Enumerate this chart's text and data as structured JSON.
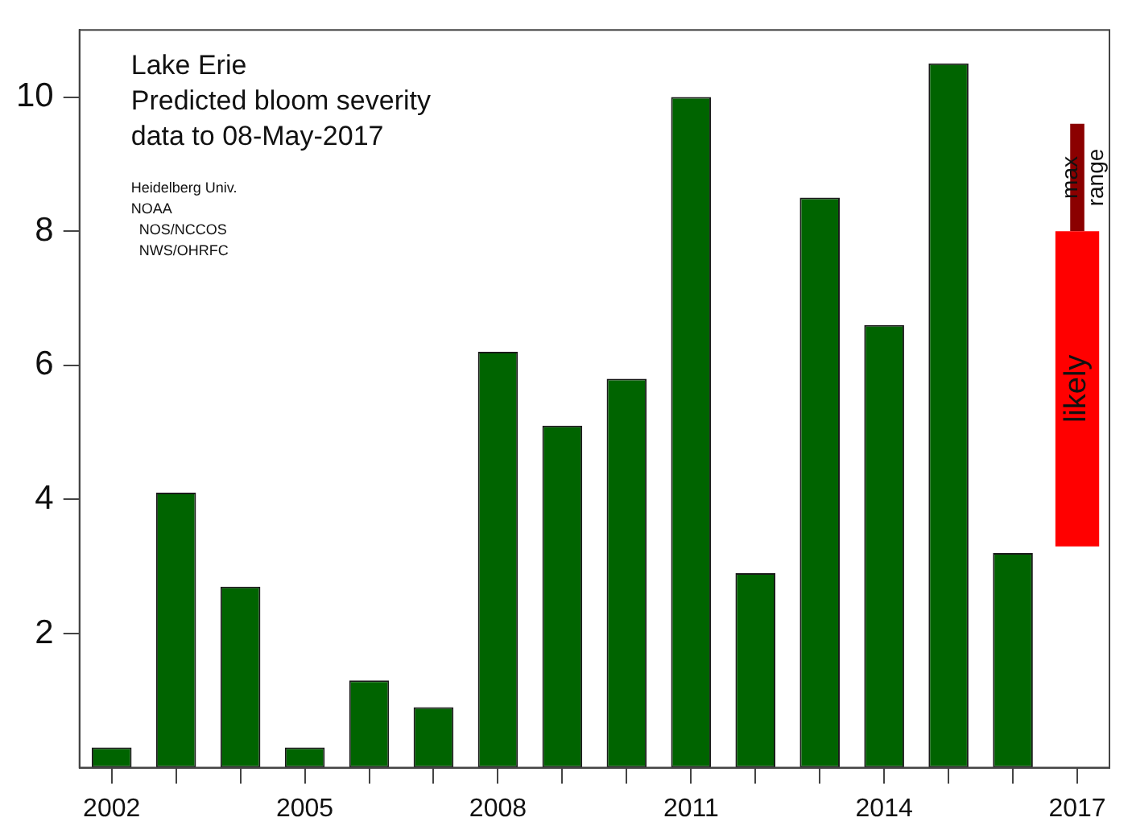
{
  "chart_data": {
    "type": "bar",
    "title": "Lake Erie",
    "subtitle": "Predicted bloom severity",
    "annotations": [
      "data to 08-May-2017",
      "Heidelberg Univ.",
      "NOAA",
      "  NOS/NCCOS",
      "  NWS/OHRFC"
    ],
    "categories": [
      "2002",
      null,
      null,
      "2005",
      null,
      null,
      "2008",
      null,
      null,
      "2011",
      null,
      null,
      "2014",
      null,
      null,
      "2017"
    ],
    "series": [
      {
        "color": "#006400",
        "values": [
          0.3,
          4.1,
          2.7,
          0.3,
          1.3,
          0.9,
          6.2,
          5.1,
          5.8,
          10.0,
          2.9,
          8.5,
          6.6,
          10.5,
          3.2,
          null
        ]
      },
      {
        "name": "likely",
        "color": "#ff0000",
        "base": [
          null,
          null,
          null,
          null,
          null,
          null,
          null,
          null,
          null,
          null,
          null,
          null,
          null,
          null,
          null,
          3.3
        ],
        "values": [
          null,
          null,
          null,
          null,
          null,
          null,
          null,
          null,
          null,
          null,
          null,
          null,
          null,
          null,
          null,
          4.7
        ]
      },
      {
        "name": "max range",
        "color": "#8b0000",
        "base": [
          null,
          null,
          null,
          null,
          null,
          null,
          null,
          null,
          null,
          null,
          null,
          null,
          null,
          null,
          null,
          8.0
        ],
        "values": [
          null,
          null,
          null,
          null,
          null,
          null,
          null,
          null,
          null,
          null,
          null,
          null,
          null,
          null,
          null,
          1.6
        ]
      }
    ],
    "ylim": [
      0,
      11
    ],
    "yticks": [
      2,
      4,
      6,
      8,
      10
    ],
    "grid": false,
    "legend": false
  }
}
